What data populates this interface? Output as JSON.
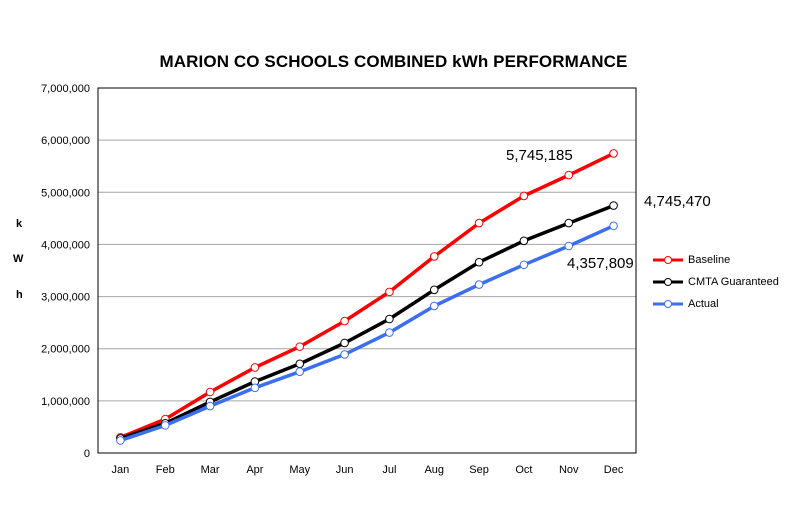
{
  "chart_data": {
    "type": "line",
    "title": "MARION CO SCHOOLS COMBINED kWh PERFORMANCE",
    "xlabel": "",
    "ylabel": [
      "k",
      "W",
      "h"
    ],
    "categories": [
      "Jan",
      "Feb",
      "Mar",
      "Apr",
      "May",
      "Jun",
      "Jul",
      "Aug",
      "Sep",
      "Oct",
      "Nov",
      "Dec"
    ],
    "ylim": [
      0,
      7000000
    ],
    "yticks": [
      "0",
      "1,000,000",
      "2,000,000",
      "3,000,000",
      "4,000,000",
      "5,000,000",
      "6,000,000",
      "7,000,000"
    ],
    "grid": "horizontal",
    "legend_position": "right",
    "series": [
      {
        "name": "Baseline",
        "color": "#ff0000",
        "values": [
          300000,
          650000,
          1170000,
          1640000,
          2040000,
          2530000,
          3090000,
          3770000,
          4410000,
          4930000,
          5330000,
          5745185
        ]
      },
      {
        "name": "CMTA Guaranteed",
        "color": "#000000",
        "values": [
          280000,
          570000,
          980000,
          1370000,
          1710000,
          2110000,
          2570000,
          3130000,
          3660000,
          4070000,
          4410000,
          4745470
        ]
      },
      {
        "name": "Actual",
        "color": "#3b6ff0",
        "values": [
          240000,
          530000,
          900000,
          1250000,
          1560000,
          1890000,
          2310000,
          2820000,
          3230000,
          3610000,
          3970000,
          4357809
        ]
      }
    ],
    "annotations": {
      "baseline_end": "5,745,185",
      "guaranteed_end": "4,745,470",
      "actual_end": "4,357,809"
    }
  }
}
